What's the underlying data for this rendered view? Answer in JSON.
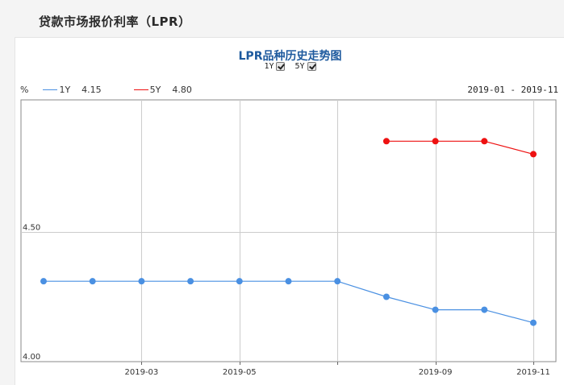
{
  "header": {
    "title": "贷款市场报价利率（LPR）"
  },
  "chart_data": {
    "type": "line",
    "title": "LPR品种历史走势图",
    "unit": "%",
    "range_label": "2019-01 - 2019-11",
    "toggles": [
      {
        "label": "1Y",
        "checked": true
      },
      {
        "label": "5Y",
        "checked": true
      }
    ],
    "x_tick_labels": [
      "2019-03",
      "2019-05",
      "2019-09",
      "2019-11"
    ],
    "y_tick_labels": [
      "4.50",
      "4.00"
    ],
    "ylim": [
      4.0,
      5.0
    ],
    "xlim": [
      0,
      10
    ],
    "grid": true,
    "legend_position": "top-left",
    "series": [
      {
        "name": "1Y",
        "latest": "4.15",
        "color": "#4a90e2",
        "x": [
          0,
          1,
          2,
          3,
          4,
          5,
          6,
          7,
          8,
          9,
          10
        ],
        "values": [
          4.31,
          4.31,
          4.31,
          4.31,
          4.31,
          4.31,
          4.31,
          4.25,
          4.2,
          4.2,
          4.15
        ]
      },
      {
        "name": "5Y",
        "latest": "4.80",
        "color": "#ee1111",
        "x": [
          7,
          8,
          9,
          10
        ],
        "values": [
          4.85,
          4.85,
          4.85,
          4.8
        ]
      }
    ]
  }
}
